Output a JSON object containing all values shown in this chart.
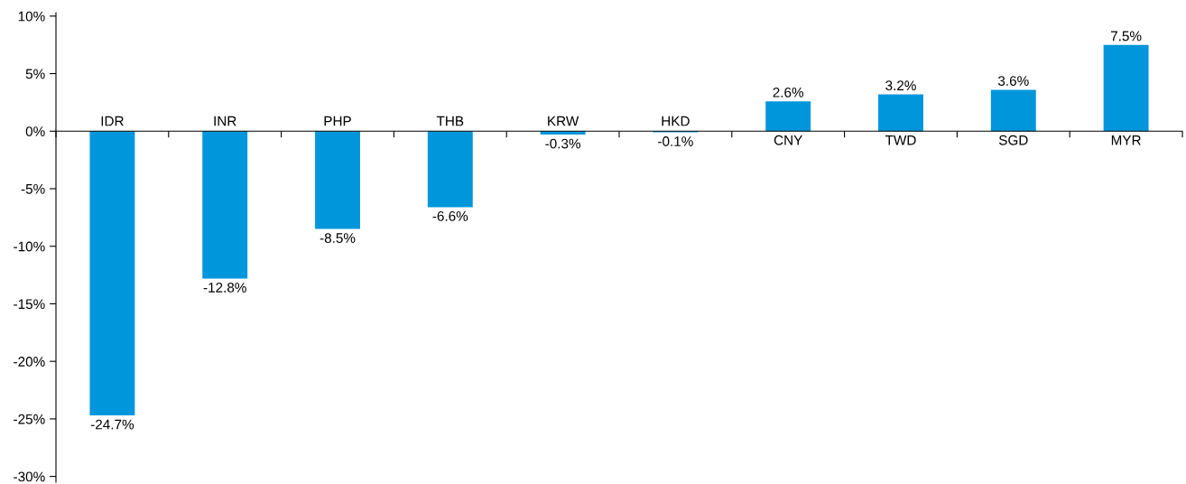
{
  "chart_data": {
    "type": "bar",
    "categories": [
      "IDR",
      "INR",
      "PHP",
      "THB",
      "KRW",
      "HKD",
      "CNY",
      "TWD",
      "SGD",
      "MYR"
    ],
    "values": [
      -24.7,
      -12.8,
      -8.5,
      -6.6,
      -0.3,
      -0.1,
      2.6,
      3.2,
      3.6,
      7.5
    ],
    "color": "#0096db",
    "value_labels": [
      "-24.7%",
      "-12.8%",
      "-8.5%",
      "-6.6%",
      "-0.3%",
      "-0.1%",
      "2.6%",
      "3.2%",
      "3.6%",
      "7.5%"
    ],
    "ylim": [
      -30.5,
      10.3
    ],
    "yticks": [
      {
        "value": -30,
        "label": "-30%"
      },
      {
        "value": -25,
        "label": "-25%"
      },
      {
        "value": -20,
        "label": "-20%"
      },
      {
        "value": -15,
        "label": "-15%"
      },
      {
        "value": -10,
        "label": "-10%"
      },
      {
        "value": -5,
        "label": "-5%"
      },
      {
        "value": 0,
        "label": "0%"
      },
      {
        "value": 5,
        "label": "5%"
      },
      {
        "value": 10,
        "label": "10%"
      }
    ],
    "grid": false,
    "legend": false
  }
}
